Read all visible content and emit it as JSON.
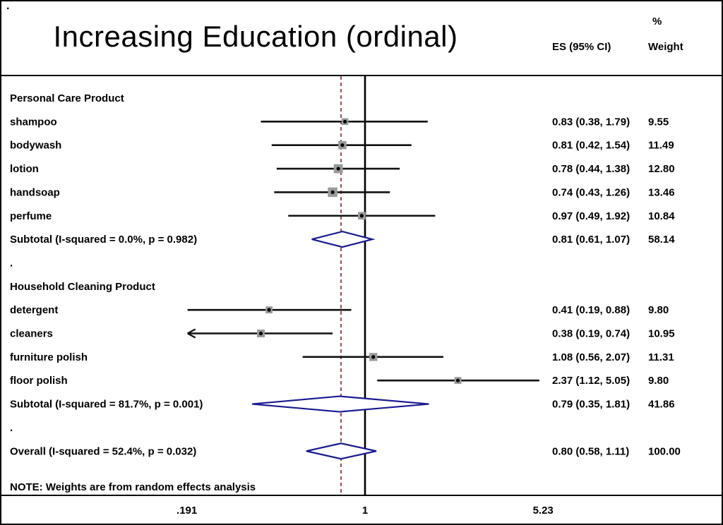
{
  "header": {
    "corner_dot": ".",
    "title": "Increasing Education (ordinal)",
    "es_col": "ES (95% CI)",
    "weight_col_top": "%",
    "weight_col_bottom": "Weight"
  },
  "note": "NOTE: Weights are from random effects analysis",
  "colors": {
    "null_line": "#000000",
    "dashed_line": "#8f3b3b",
    "ci_line": "#111111",
    "marker_fill": "#9a9a9a",
    "marker_dot": "#000000",
    "diamond_stroke": "#1a1a8f",
    "diamond_fill": "#ffffff",
    "rule": "#000000"
  },
  "chart_data": {
    "type": "forest",
    "title": "Increasing Education (ordinal)",
    "x_scale": "log",
    "null_value": 1,
    "overall_es": 0.8,
    "x_min": 0.191,
    "x_max": 5.23,
    "x_ticks": [
      {
        "value": 0.191,
        "label": ".191"
      },
      {
        "value": 1,
        "label": "1"
      },
      {
        "value": 5.23,
        "label": "5.23"
      }
    ],
    "rows": [
      {
        "type": "group",
        "label": "Personal Care Product"
      },
      {
        "type": "study",
        "label": "shampoo",
        "es": 0.83,
        "lo": 0.38,
        "hi": 1.79,
        "es_ci": "0.83 (0.38, 1.79)",
        "weight": "9.55",
        "w": 9.55
      },
      {
        "type": "study",
        "label": "bodywash",
        "es": 0.81,
        "lo": 0.42,
        "hi": 1.54,
        "es_ci": "0.81 (0.42, 1.54)",
        "weight": "11.49",
        "w": 11.49
      },
      {
        "type": "study",
        "label": "lotion",
        "es": 0.78,
        "lo": 0.44,
        "hi": 1.38,
        "es_ci": "0.78 (0.44, 1.38)",
        "weight": "12.80",
        "w": 12.8
      },
      {
        "type": "study",
        "label": "handsoap",
        "es": 0.74,
        "lo": 0.43,
        "hi": 1.26,
        "es_ci": "0.74 (0.43, 1.26)",
        "weight": "13.46",
        "w": 13.46
      },
      {
        "type": "study",
        "label": "perfume",
        "es": 0.97,
        "lo": 0.49,
        "hi": 1.92,
        "es_ci": "0.97 (0.49, 1.92)",
        "weight": "10.84",
        "w": 10.84
      },
      {
        "type": "summary",
        "label": "Subtotal  (I-squared = 0.0%, p = 0.982)",
        "es": 0.81,
        "lo": 0.61,
        "hi": 1.07,
        "es_ci": "0.81 (0.61, 1.07)",
        "weight": "58.14"
      },
      {
        "type": "spacer",
        "label": "."
      },
      {
        "type": "group",
        "label": "Household Cleaning Product"
      },
      {
        "type": "study",
        "label": "detergent",
        "es": 0.41,
        "lo": 0.19,
        "hi": 0.88,
        "es_ci": "0.41 (0.19, 0.88)",
        "weight": "9.80",
        "w": 9.8
      },
      {
        "type": "study",
        "label": "cleaners",
        "es": 0.38,
        "lo": 0.19,
        "hi": 0.74,
        "es_ci": "0.38 (0.19, 0.74)",
        "weight": "10.95",
        "w": 10.95,
        "clip_lo": true
      },
      {
        "type": "study",
        "label": "furniture polish",
        "es": 1.08,
        "lo": 0.56,
        "hi": 2.07,
        "es_ci": "1.08 (0.56, 2.07)",
        "weight": "11.31",
        "w": 11.31
      },
      {
        "type": "study",
        "label": "floor polish",
        "es": 2.37,
        "lo": 1.12,
        "hi": 5.05,
        "es_ci": "2.37 (1.12, 5.05)",
        "weight": "9.80",
        "w": 9.8
      },
      {
        "type": "summary",
        "label": "Subtotal  (I-squared = 81.7%, p = 0.001)",
        "es": 0.79,
        "lo": 0.35,
        "hi": 1.81,
        "es_ci": "0.79 (0.35, 1.81)",
        "weight": "41.86"
      },
      {
        "type": "spacer",
        "label": "."
      },
      {
        "type": "summary",
        "label": "Overall  (I-squared = 52.4%, p = 0.032)",
        "es": 0.8,
        "lo": 0.58,
        "hi": 1.11,
        "es_ci": "0.80 (0.58, 1.11)",
        "weight": "100.00"
      }
    ]
  }
}
